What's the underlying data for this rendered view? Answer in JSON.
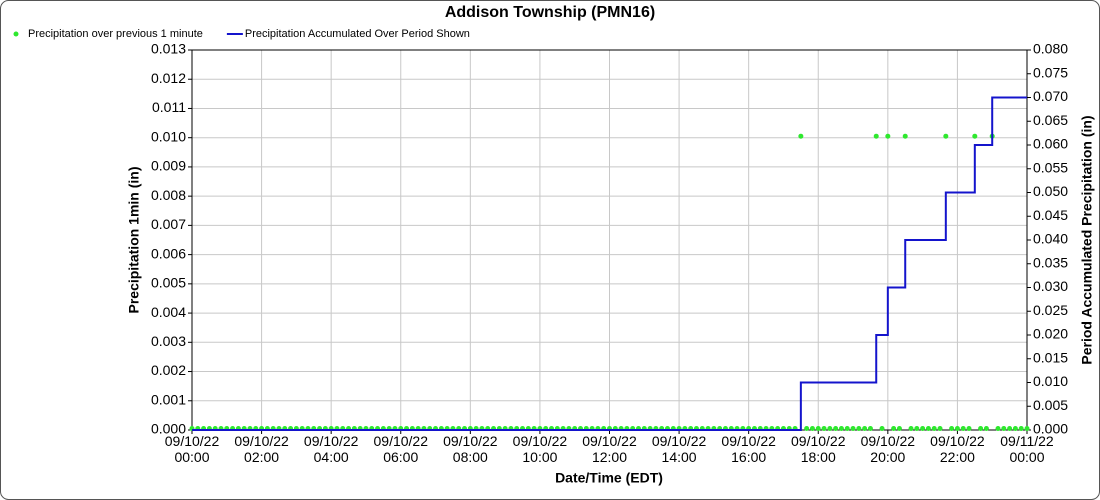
{
  "chart_data": {
    "type": "combo",
    "title": "Addison Township (PMN16)",
    "x_label": "Date/Time (EDT)",
    "y_label": "Precipitation 1min (in)",
    "y2_label": "Period Accumulated Precipitation (in)",
    "xlim": [
      "09/10/22 00:00",
      "09/11/22 00:00"
    ],
    "xticks": [
      [
        "09/10/22",
        "00:00"
      ],
      [
        "09/10/22",
        "02:00"
      ],
      [
        "09/10/22",
        "04:00"
      ],
      [
        "09/10/22",
        "06:00"
      ],
      [
        "09/10/22",
        "08:00"
      ],
      [
        "09/10/22",
        "10:00"
      ],
      [
        "09/10/22",
        "12:00"
      ],
      [
        "09/10/22",
        "14:00"
      ],
      [
        "09/10/22",
        "16:00"
      ],
      [
        "09/10/22",
        "18:00"
      ],
      [
        "09/10/22",
        "20:00"
      ],
      [
        "09/10/22",
        "22:00"
      ],
      [
        "09/11/22",
        "00:00"
      ]
    ],
    "ylim": [
      0,
      0.013
    ],
    "yticks": [
      {
        "value": 0,
        "label": "0.000"
      },
      0.001,
      0.002,
      0.003,
      0.004,
      0.005,
      0.006,
      0.007,
      0.008,
      0.009,
      {
        "value": 0.01,
        "label": "0.010"
      },
      0.011,
      0.012,
      0.013
    ],
    "y2lim": [
      0,
      0.08
    ],
    "y2ticks": [
      {
        "value": 0,
        "label": "0.000"
      },
      0.005,
      {
        "value": 0.01,
        "label": "0.010"
      },
      0.015,
      {
        "value": 0.02,
        "label": "0.020"
      },
      0.025,
      {
        "value": 0.03,
        "label": "0.030"
      },
      0.035,
      {
        "value": 0.04,
        "label": "0.040"
      },
      0.045,
      {
        "value": 0.05,
        "label": "0.050"
      },
      0.055,
      {
        "value": 0.06,
        "label": "0.060"
      },
      0.065,
      {
        "value": 0.07,
        "label": "0.070"
      },
      0.075,
      {
        "value": 0.08,
        "label": "0.080"
      }
    ],
    "grid": true,
    "x": [
      "09/10/22 00:00",
      "09/10/22 00:10",
      "09/10/22 00:20",
      "09/10/22 00:30",
      "09/10/22 00:40",
      "09/10/22 00:50",
      "09/10/22 01:00",
      "09/10/22 01:10",
      "09/10/22 01:20",
      "09/10/22 01:30",
      "09/10/22 01:40",
      "09/10/22 01:50",
      "09/10/22 02:00",
      "09/10/22 02:10",
      "09/10/22 02:20",
      "09/10/22 02:30",
      "09/10/22 02:40",
      "09/10/22 02:50",
      "09/10/22 03:00",
      "09/10/22 03:10",
      "09/10/22 03:20",
      "09/10/22 03:30",
      "09/10/22 03:40",
      "09/10/22 03:50",
      "09/10/22 04:00",
      "09/10/22 04:10",
      "09/10/22 04:20",
      "09/10/22 04:30",
      "09/10/22 04:40",
      "09/10/22 04:50",
      "09/10/22 05:00",
      "09/10/22 05:10",
      "09/10/22 05:20",
      "09/10/22 05:30",
      "09/10/22 05:40",
      "09/10/22 05:50",
      "09/10/22 06:00",
      "09/10/22 06:10",
      "09/10/22 06:20",
      "09/10/22 06:30",
      "09/10/22 06:40",
      "09/10/22 06:50",
      "09/10/22 07:00",
      "09/10/22 07:10",
      "09/10/22 07:20",
      "09/10/22 07:30",
      "09/10/22 07:40",
      "09/10/22 07:50",
      "09/10/22 08:00",
      "09/10/22 08:10",
      "09/10/22 08:20",
      "09/10/22 08:30",
      "09/10/22 08:40",
      "09/10/22 08:50",
      "09/10/22 09:00",
      "09/10/22 09:10",
      "09/10/22 09:20",
      "09/10/22 09:30",
      "09/10/22 09:40",
      "09/10/22 09:50",
      "09/10/22 10:00",
      "09/10/22 10:10",
      "09/10/22 10:20",
      "09/10/22 10:30",
      "09/10/22 10:40",
      "09/10/22 10:50",
      "09/10/22 11:00",
      "09/10/22 11:10",
      "09/10/22 11:20",
      "09/10/22 11:30",
      "09/10/22 11:40",
      "09/10/22 11:50",
      "09/10/22 12:00",
      "09/10/22 12:10",
      "09/10/22 12:20",
      "09/10/22 12:30",
      "09/10/22 12:40",
      "09/10/22 12:50",
      "09/10/22 13:00",
      "09/10/22 13:10",
      "09/10/22 13:20",
      "09/10/22 13:30",
      "09/10/22 13:40",
      "09/10/22 13:50",
      "09/10/22 14:00",
      "09/10/22 14:10",
      "09/10/22 14:20",
      "09/10/22 14:30",
      "09/10/22 14:40",
      "09/10/22 14:50",
      "09/10/22 15:00",
      "09/10/22 15:10",
      "09/10/22 15:20",
      "09/10/22 15:30",
      "09/10/22 15:40",
      "09/10/22 15:50",
      "09/10/22 16:00",
      "09/10/22 16:10",
      "09/10/22 16:20",
      "09/10/22 16:30",
      "09/10/22 16:40",
      "09/10/22 16:50",
      "09/10/22 17:00",
      "09/10/22 17:10",
      "09/10/22 17:20",
      "09/10/22 17:30",
      "09/10/22 17:40",
      "09/10/22 17:50",
      "09/10/22 18:00",
      "09/10/22 18:10",
      "09/10/22 18:20",
      "09/10/22 18:30",
      "09/10/22 18:40",
      "09/10/22 18:50",
      "09/10/22 19:00",
      "09/10/22 19:10",
      "09/10/22 19:20",
      "09/10/22 19:30",
      "09/10/22 19:40",
      "09/10/22 19:50",
      "09/10/22 20:00",
      "09/10/22 20:10",
      "09/10/22 20:20",
      "09/10/22 20:30",
      "09/10/22 20:40",
      "09/10/22 20:50",
      "09/10/22 21:00",
      "09/10/22 21:10",
      "09/10/22 21:20",
      "09/10/22 21:30",
      "09/10/22 21:40",
      "09/10/22 21:50",
      "09/10/22 22:00",
      "09/10/22 22:10",
      "09/10/22 22:20",
      "09/10/22 22:30",
      "09/10/22 22:40",
      "09/10/22 22:50",
      "09/10/22 23:00",
      "09/10/22 23:10",
      "09/10/22 23:20",
      "09/10/22 23:30",
      "09/10/22 23:40",
      "09/10/22 23:50",
      "09/11/22 00:00"
    ],
    "series": [
      {
        "name": "Precipitation over previous 1 minute",
        "type": "scatter",
        "color": "#2ee82e",
        "values": [
          0,
          0,
          0,
          0,
          0,
          0,
          0,
          0,
          0,
          0,
          0,
          0,
          0,
          0,
          0,
          0,
          0,
          0,
          0,
          0,
          0,
          0,
          0,
          0,
          0,
          0,
          0,
          0,
          0,
          0,
          0,
          0,
          0,
          0,
          0,
          0,
          0,
          0,
          0,
          0,
          0,
          0,
          0,
          0,
          0,
          0,
          0,
          0,
          0,
          0,
          0,
          0,
          0,
          0,
          0,
          0,
          0,
          0,
          0,
          0,
          0,
          0,
          0,
          0,
          0,
          0,
          0,
          0,
          0,
          0,
          0,
          0,
          0,
          0,
          0,
          0,
          0,
          0,
          0,
          0,
          0,
          0,
          0,
          0,
          0,
          0,
          0,
          0,
          0,
          0,
          0,
          0,
          0,
          0,
          0,
          0,
          0,
          0,
          0,
          0,
          0,
          0,
          0,
          0,
          0,
          0.01,
          0,
          0,
          0,
          0,
          0,
          0,
          0,
          0,
          0,
          0,
          0,
          0,
          0.01,
          0,
          0.01,
          0,
          0,
          0.01,
          0,
          0,
          0,
          0,
          0,
          0,
          0.01,
          0,
          0,
          0,
          0,
          0.01,
          0,
          0,
          0.01,
          0,
          0,
          0,
          0,
          0,
          0
        ]
      },
      {
        "name": "Precipitation Accumulated Over Period Shown",
        "type": "step",
        "axis": "y2",
        "color": "#1414cc",
        "values": [
          0,
          0,
          0,
          0,
          0,
          0,
          0,
          0,
          0,
          0,
          0,
          0,
          0,
          0,
          0,
          0,
          0,
          0,
          0,
          0,
          0,
          0,
          0,
          0,
          0,
          0,
          0,
          0,
          0,
          0,
          0,
          0,
          0,
          0,
          0,
          0,
          0,
          0,
          0,
          0,
          0,
          0,
          0,
          0,
          0,
          0,
          0,
          0,
          0,
          0,
          0,
          0,
          0,
          0,
          0,
          0,
          0,
          0,
          0,
          0,
          0,
          0,
          0,
          0,
          0,
          0,
          0,
          0,
          0,
          0,
          0,
          0,
          0,
          0,
          0,
          0,
          0,
          0,
          0,
          0,
          0,
          0,
          0,
          0,
          0,
          0,
          0,
          0,
          0,
          0,
          0,
          0,
          0,
          0,
          0,
          0,
          0,
          0,
          0,
          0,
          0,
          0,
          0,
          0,
          0,
          0.01,
          0.01,
          0.01,
          0.01,
          0.01,
          0.01,
          0.01,
          0.01,
          0.01,
          0.01,
          0.01,
          0.01,
          0.01,
          0.02,
          0.02,
          0.03,
          0.03,
          0.03,
          0.04,
          0.04,
          0.04,
          0.04,
          0.04,
          0.04,
          0.04,
          0.05,
          0.05,
          0.05,
          0.05,
          0.05,
          0.06,
          0.06,
          0.06,
          0.07,
          0.07,
          0.07,
          0.07,
          0.07,
          0.07,
          0.07
        ]
      }
    ]
  }
}
